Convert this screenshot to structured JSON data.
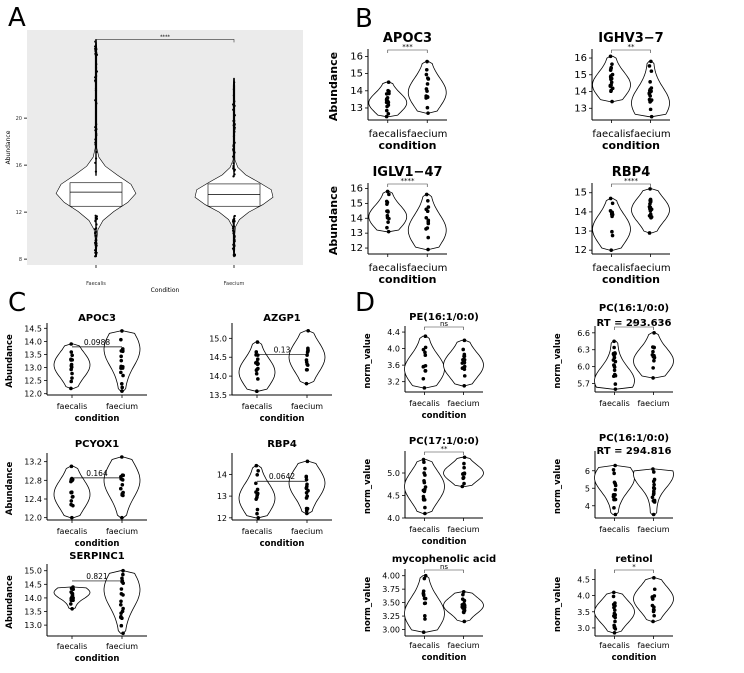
{
  "panel_letters": [
    "A",
    "B",
    "C",
    "D"
  ],
  "chart_data": [
    {
      "panel": "A",
      "type": "violin",
      "title": "",
      "xlabel": "Condition",
      "ylabel": "Abundance",
      "categories": [
        "Faecalis",
        "Faecium"
      ],
      "ylim": [
        7.5,
        27.5
      ],
      "yticks": [
        8,
        12,
        16,
        20
      ],
      "box": true,
      "significance": "****",
      "series": [
        {
          "median": 13.7,
          "q1": 12.5,
          "q3": 14.5,
          "min": 8.2,
          "max": 26.7
        },
        {
          "median": 13.5,
          "q1": 12.5,
          "q3": 14.4,
          "min": 8.2,
          "max": 23.4
        }
      ]
    },
    {
      "panel": "B",
      "type": "violin",
      "title": "APOC3",
      "xlabel": "condition",
      "ylabel": "Abundance",
      "categories": [
        "faecalis",
        "faecium"
      ],
      "ylim": [
        12.3,
        16.2
      ],
      "yticks": [
        13,
        14,
        15,
        16
      ],
      "significance": "***",
      "series": [
        {
          "median": 13.3,
          "min": 12.5,
          "max": 14.5
        },
        {
          "median": 13.9,
          "min": 12.7,
          "max": 15.7
        }
      ]
    },
    {
      "panel": "B",
      "type": "violin",
      "title": "IGHV3−7",
      "xlabel": "condition",
      "ylabel": "",
      "categories": [
        "faecalis",
        "faecium"
      ],
      "ylim": [
        12.3,
        16.3
      ],
      "yticks": [
        13,
        14,
        15,
        16
      ],
      "significance": "**",
      "series": [
        {
          "median": 14.4,
          "min": 13.4,
          "max": 16.1
        },
        {
          "median": 13.3,
          "min": 12.5,
          "max": 15.8
        }
      ]
    },
    {
      "panel": "B",
      "type": "violin",
      "title": "IGLV1−47",
      "xlabel": "condition",
      "ylabel": "Abundance",
      "categories": [
        "faecalis",
        "faecium"
      ],
      "ylim": [
        11.6,
        16.1
      ],
      "yticks": [
        12,
        13,
        14,
        15,
        16
      ],
      "significance": "****",
      "series": [
        {
          "median": 14.1,
          "min": 13.1,
          "max": 15.8
        },
        {
          "median": 13.2,
          "min": 11.9,
          "max": 15.6
        }
      ]
    },
    {
      "panel": "B",
      "type": "violin",
      "title": "RBP4",
      "xlabel": "condition",
      "ylabel": "",
      "categories": [
        "faecalis",
        "faecium"
      ],
      "ylim": [
        11.8,
        15.3
      ],
      "yticks": [
        12,
        13,
        14,
        15
      ],
      "significance": "****",
      "series": [
        {
          "median": 13.1,
          "min": 12.0,
          "max": 14.7
        },
        {
          "median": 14.1,
          "min": 12.9,
          "max": 15.2
        }
      ]
    },
    {
      "panel": "C",
      "type": "violin",
      "title": "APOC3",
      "xlabel": "condition",
      "ylabel": "Abundance",
      "categories": [
        "faecalis",
        "faecium"
      ],
      "ylim": [
        11.95,
        14.55
      ],
      "yticks": [
        12.0,
        12.5,
        13.0,
        13.5,
        14.0,
        14.5
      ],
      "pvalue": "0.0988",
      "series": [
        {
          "median": 13.1,
          "min": 12.2,
          "max": 13.9
        },
        {
          "median": 13.7,
          "min": 12.1,
          "max": 14.4
        }
      ]
    },
    {
      "panel": "C",
      "type": "violin",
      "title": "AZGP1",
      "xlabel": "condition",
      "ylabel": "",
      "categories": [
        "faecalis",
        "faecium"
      ],
      "ylim": [
        13.5,
        15.3
      ],
      "yticks": [
        13.5,
        14.0,
        14.5,
        15.0
      ],
      "pvalue": "0.13",
      "series": [
        {
          "median": 14.1,
          "min": 13.6,
          "max": 14.9
        },
        {
          "median": 14.5,
          "min": 13.8,
          "max": 15.2
        }
      ]
    },
    {
      "panel": "C",
      "type": "violin",
      "title": "PCYOX1",
      "xlabel": "condition",
      "ylabel": "Abundance",
      "categories": [
        "faecalis",
        "faecium"
      ],
      "ylim": [
        11.95,
        13.3
      ],
      "yticks": [
        12.0,
        12.4,
        12.8,
        13.2
      ],
      "pvalue": "0.164",
      "series": [
        {
          "median": 12.5,
          "min": 12.0,
          "max": 13.1
        },
        {
          "median": 12.8,
          "min": 12.0,
          "max": 13.3
        }
      ]
    },
    {
      "panel": "C",
      "type": "violin",
      "title": "RBP4",
      "xlabel": "condition",
      "ylabel": "",
      "categories": [
        "faecalis",
        "faecium"
      ],
      "ylim": [
        11.9,
        14.8
      ],
      "yticks": [
        12,
        13,
        14
      ],
      "pvalue": "0.0642",
      "series": [
        {
          "median": 12.9,
          "min": 12.0,
          "max": 14.4
        },
        {
          "median": 13.6,
          "min": 12.2,
          "max": 14.6
        }
      ]
    },
    {
      "panel": "C",
      "type": "violin",
      "title": "SERPINC1",
      "xlabel": "condition",
      "ylabel": "Abundance",
      "categories": [
        "faecalis",
        "faecium"
      ],
      "ylim": [
        12.6,
        15.1
      ],
      "yticks": [
        13.0,
        13.5,
        14.0,
        14.5,
        15.0
      ],
      "pvalue": "0.821",
      "series": [
        {
          "median": 14.2,
          "min": 13.6,
          "max": 14.4
        },
        {
          "median": 14.3,
          "min": 12.7,
          "max": 15.0
        }
      ]
    },
    {
      "panel": "D",
      "type": "violin",
      "title": "PE(16:1/0:0)",
      "xlabel": "condition",
      "ylabel": "norm_value",
      "categories": [
        "faecalis",
        "faecium"
      ],
      "ylim": [
        2.95,
        4.45
      ],
      "yticks": [
        3.2,
        3.6,
        4.0,
        4.4
      ],
      "significance": "ns",
      "series": [
        {
          "median": 3.5,
          "min": 3.05,
          "max": 4.3
        },
        {
          "median": 3.6,
          "min": 3.1,
          "max": 4.2
        }
      ]
    },
    {
      "panel": "D",
      "type": "violin",
      "title": "PC(16:1/0:0)\nRT = 293.636",
      "xlabel": "",
      "ylabel": "norm_value",
      "categories": [
        "faecalis",
        "faecium"
      ],
      "ylim": [
        5.55,
        6.65
      ],
      "yticks": [
        5.7,
        6.0,
        6.3,
        6.6
      ],
      "significance": "*",
      "series": [
        {
          "median": 5.75,
          "min": 5.6,
          "max": 6.45
        },
        {
          "median": 6.1,
          "min": 5.8,
          "max": 6.6
        }
      ]
    },
    {
      "panel": "D",
      "type": "violin",
      "title": "PC(17:1/0:0)",
      "xlabel": "condition",
      "ylabel": "norm_value",
      "categories": [
        "faecalis",
        "faecium"
      ],
      "ylim": [
        4.0,
        5.4
      ],
      "yticks": [
        4.0,
        4.5,
        5.0
      ],
      "significance": "**",
      "series": [
        {
          "median": 4.7,
          "min": 4.1,
          "max": 5.3
        },
        {
          "median": 5.0,
          "min": 4.7,
          "max": 5.35
        }
      ]
    },
    {
      "panel": "D",
      "type": "violin",
      "title": "PC(16:1/0:0)\nRT = 294.816",
      "xlabel": "",
      "ylabel": "norm_value",
      "categories": [
        "faecalis",
        "faecium"
      ],
      "ylim": [
        3.3,
        6.9
      ],
      "yticks": [
        4,
        5,
        6
      ],
      "significance": "",
      "series": [
        {
          "median": 5.6,
          "min": 3.5,
          "max": 6.3
        },
        {
          "median": 5.8,
          "min": 3.5,
          "max": 6.1
        }
      ]
    },
    {
      "panel": "D",
      "type": "violin",
      "title": "mycophenolic acid",
      "xlabel": "condition",
      "ylabel": "norm_value",
      "categories": [
        "faecalis",
        "faecium"
      ],
      "ylim": [
        2.88,
        4.05
      ],
      "yticks": [
        3.0,
        3.25,
        3.5,
        3.75,
        4.0
      ],
      "significance": "ns",
      "series": [
        {
          "median": 3.3,
          "min": 2.95,
          "max": 4.0
        },
        {
          "median": 3.45,
          "min": 3.15,
          "max": 3.7
        }
      ]
    },
    {
      "panel": "D",
      "type": "violin",
      "title": "retinol",
      "xlabel": "condition",
      "ylabel": "norm_value",
      "categories": [
        "faecalis",
        "faecium"
      ],
      "ylim": [
        2.75,
        4.7
      ],
      "yticks": [
        3.0,
        3.5,
        4.0,
        4.5
      ],
      "significance": "*",
      "series": [
        {
          "median": 3.5,
          "min": 2.85,
          "max": 4.1
        },
        {
          "median": 3.9,
          "min": 3.2,
          "max": 4.55
        }
      ]
    }
  ]
}
